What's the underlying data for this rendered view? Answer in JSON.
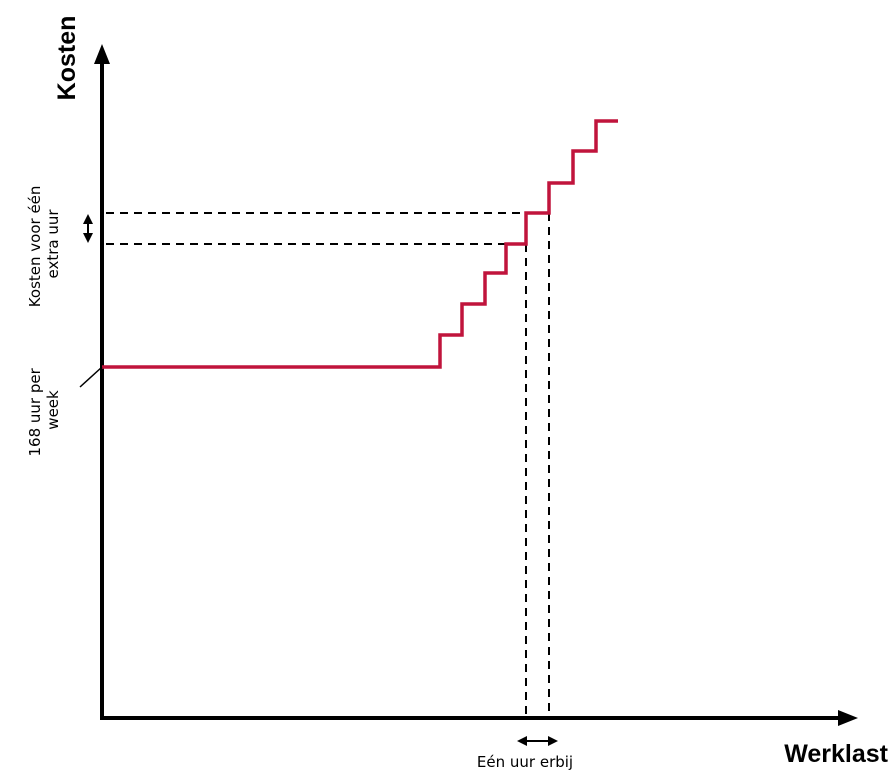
{
  "diagram": {
    "y_axis_title": "Kosten",
    "x_axis_title": "Werklast",
    "baseline_label": [
      "168 uur per",
      "week"
    ],
    "extra_hour_cost_label": [
      "Kosten voor één",
      "extra uur"
    ],
    "extra_hour_label": "Eén uur erbij",
    "colors": {
      "cost_line": "#C0143C",
      "axes": "#000000",
      "guides": "#000000"
    }
  }
}
